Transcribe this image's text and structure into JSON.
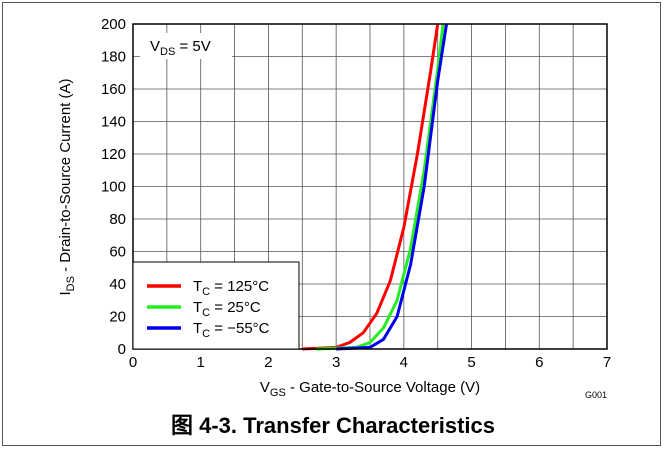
{
  "chart_data": {
    "type": "line",
    "annotation": {
      "main": "V",
      "sub": "DS",
      "rest": " = 5V"
    },
    "xlabel": {
      "main": "V",
      "sub": "GS",
      "rest": " - Gate-to-Source Voltage (V)"
    },
    "ylabel": {
      "main": "I",
      "sub": "DS",
      "rest": " - Drain-to-Source Current  (A)"
    },
    "figure_id": "G001",
    "xlim": [
      0,
      7
    ],
    "ylim": [
      0,
      200
    ],
    "xticks": [
      0,
      1,
      2,
      3,
      4,
      5,
      6,
      7
    ],
    "yticks": [
      0,
      20,
      40,
      60,
      80,
      100,
      120,
      140,
      160,
      180,
      200
    ],
    "x_minor_step": 0.5,
    "grid": true,
    "legend_position": "bottom-left",
    "series": [
      {
        "name": {
          "main": "T",
          "sub": "C",
          "rest": " = 125°C"
        },
        "color": "#ff0000",
        "x": [
          2.5,
          3.0,
          3.2,
          3.4,
          3.6,
          3.8,
          4.0,
          4.2,
          4.4,
          4.5
        ],
        "y": [
          0,
          1,
          4,
          10,
          22,
          42,
          75,
          120,
          172,
          200
        ]
      },
      {
        "name": {
          "main": "T",
          "sub": "C",
          "rest": " = 25°C"
        },
        "color": "#22ee22",
        "x": [
          2.7,
          3.3,
          3.5,
          3.7,
          3.9,
          4.1,
          4.3,
          4.5,
          4.58
        ],
        "y": [
          0,
          1,
          4,
          13,
          30,
          62,
          110,
          172,
          200
        ]
      },
      {
        "name": {
          "main": "T",
          "sub": "C",
          "rest": " = −55°C"
        },
        "color": "#0000ee",
        "x": [
          3.0,
          3.5,
          3.7,
          3.9,
          4.1,
          4.3,
          4.5,
          4.63
        ],
        "y": [
          0,
          1,
          6,
          20,
          52,
          100,
          165,
          200
        ]
      }
    ]
  },
  "caption": "图 4-3. Transfer Characteristics"
}
